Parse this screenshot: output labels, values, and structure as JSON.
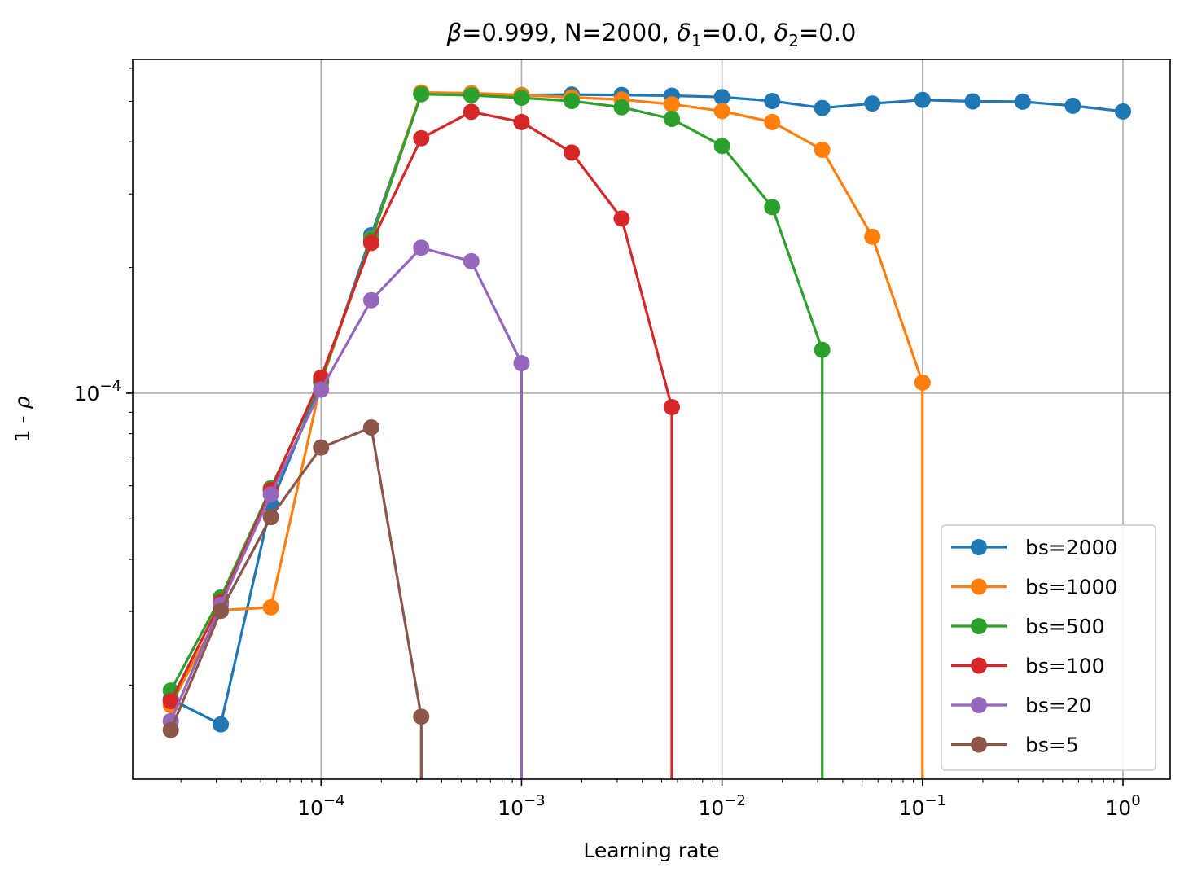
{
  "chart_data": {
    "type": "line",
    "title": {
      "beta": "β",
      "beta_value": "=0.999, N=2000, ",
      "delta": "δ",
      "delta1_sub": "1",
      "delta1_value": "=0.0, ",
      "delta2_sub": "2",
      "delta2_value": "=0.0"
    },
    "xlabel": "Learning rate",
    "ylabel": {
      "text": "1 - ",
      "rho": "ρ"
    },
    "xscale": "log",
    "yscale": "log",
    "xlim": [
      1.15e-05,
      1.72
    ],
    "ylim": [
      1.19e-05,
      0.00063
    ],
    "grid": true,
    "legend_position": "lower right",
    "x_ticks": [
      {
        "value": 0.0001,
        "base": "10",
        "exp": "−4"
      },
      {
        "value": 0.001,
        "base": "10",
        "exp": "−3"
      },
      {
        "value": 0.01,
        "base": "10",
        "exp": "−2"
      },
      {
        "value": 0.1,
        "base": "10",
        "exp": "−1"
      },
      {
        "value": 1,
        "base": "10",
        "exp": "0"
      }
    ],
    "y_ticks": [
      {
        "value": 0.0001,
        "base": "10",
        "exp": "−4"
      }
    ],
    "series": [
      {
        "name": "bs=2000",
        "color": "#1f77b4",
        "x": [
          1.78e-05,
          3.16e-05,
          5.62e-05,
          0.0001,
          0.000178,
          0.000316,
          0.000562,
          0.001,
          0.00178,
          0.00316,
          0.00562,
          0.01,
          0.0178,
          0.0316,
          0.0562,
          0.1,
          0.178,
          0.316,
          0.562,
          1.0
        ],
        "y": [
          1.85e-05,
          1.61e-05,
          5.41e-05,
          0.000106,
          0.000239,
          0.000522,
          0.000522,
          0.000518,
          0.000519,
          0.000518,
          0.000516,
          0.000512,
          0.000501,
          0.000482,
          0.000494,
          0.000504,
          0.0005,
          0.000499,
          0.000488,
          0.000473
        ],
        "drop_to_zero": false
      },
      {
        "name": "bs=1000",
        "color": "#ff7f0e",
        "x": [
          1.78e-05,
          3.16e-05,
          5.62e-05,
          0.0001,
          0.000178,
          0.000316,
          0.000562,
          0.001,
          0.00178,
          0.00316,
          0.00562,
          0.01,
          0.0178,
          0.0316,
          0.0562,
          0.1
        ],
        "y": [
          1.79e-05,
          3.02e-05,
          3.07e-05,
          0.000106,
          0.000234,
          0.000525,
          0.000523,
          0.000518,
          0.000511,
          0.000505,
          0.000492,
          0.000474,
          0.000446,
          0.000383,
          0.000237,
          0.000106
        ],
        "drop_to_zero": true
      },
      {
        "name": "bs=500",
        "color": "#2ca02c",
        "x": [
          1.78e-05,
          3.16e-05,
          5.62e-05,
          0.0001,
          0.000178,
          0.000316,
          0.000562,
          0.001,
          0.00178,
          0.00316,
          0.00562,
          0.01,
          0.0178,
          0.0316
        ],
        "y": [
          1.94e-05,
          3.24e-05,
          5.92e-05,
          0.000107,
          0.000233,
          0.00052,
          0.000517,
          0.00051,
          0.000501,
          0.000484,
          0.000454,
          0.000391,
          0.000279,
          0.000127
        ],
        "drop_to_zero": true
      },
      {
        "name": "bs=100",
        "color": "#d62728",
        "x": [
          1.78e-05,
          3.16e-05,
          5.62e-05,
          0.0001,
          0.000178,
          0.000316,
          0.000562,
          0.001,
          0.00178,
          0.00316,
          0.00562
        ],
        "y": [
          1.83e-05,
          3.16e-05,
          5.86e-05,
          0.000109,
          0.000229,
          0.000408,
          0.000472,
          0.000446,
          0.000377,
          0.000262,
          9.26e-05
        ],
        "drop_to_zero": true
      },
      {
        "name": "bs=20",
        "color": "#9467bd",
        "x": [
          1.78e-05,
          3.16e-05,
          5.62e-05,
          0.0001,
          0.000178,
          0.000316,
          0.000562,
          0.001
        ],
        "y": [
          1.64e-05,
          3.11e-05,
          5.72e-05,
          0.000102,
          0.000167,
          0.000223,
          0.000207,
          0.000118
        ],
        "drop_to_zero": true
      },
      {
        "name": "bs=5",
        "color": "#8c564b",
        "x": [
          1.78e-05,
          3.16e-05,
          5.62e-05,
          0.0001,
          0.000178,
          0.000316
        ],
        "y": [
          1.56e-05,
          3.01e-05,
          5.05e-05,
          7.41e-05,
          8.28e-05,
          1.68e-05
        ],
        "drop_to_zero": true
      }
    ]
  }
}
